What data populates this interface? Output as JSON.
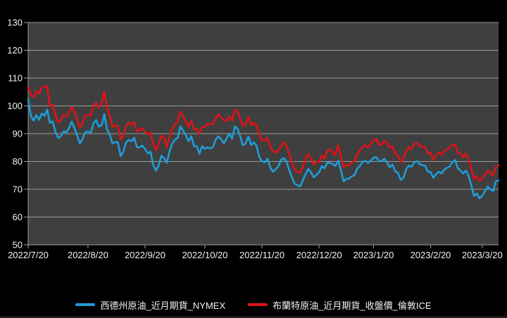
{
  "colors": {
    "background": "#000000",
    "plot_background": "#3F3F3F",
    "gridline": "#9B9B9B",
    "axis_text": "#F2F2F2",
    "wti_line": "#1E9DD8",
    "brent_line": "#E01217",
    "bottom_edge": "#1D1D1D"
  },
  "chart_data": {
    "type": "line",
    "title": "",
    "grid": "horizontal",
    "legend_position": "bottom",
    "ylim": [
      50,
      130
    ],
    "y_ticks": [
      130,
      120,
      110,
      100,
      90,
      80,
      70,
      60,
      50
    ],
    "x_tick_labels": [
      "2022/7/20",
      "2022/8/20",
      "2022/9/20",
      "2022/10/20",
      "2022/11/20",
      "2022/12/20",
      "2023/1/20",
      "2023/2/20",
      "2023/3/20"
    ],
    "x_tick_indices": [
      0,
      22,
      43,
      65,
      86,
      107,
      127,
      148,
      167
    ],
    "series": [
      {
        "name": "西德州原油_近月期貨_NYMEX",
        "color": "#1E9DD8",
        "values": [
          102.3,
          96.4,
          94.7,
          96.7,
          95.0,
          97.3,
          96.4,
          98.6,
          93.9,
          94.4,
          90.7,
          88.5,
          89.0,
          90.8,
          90.5,
          91.9,
          94.3,
          92.1,
          89.4,
          86.5,
          88.1,
          90.5,
          90.8,
          90.2,
          93.7,
          94.9,
          92.5,
          93.1,
          97.0,
          91.6,
          89.6,
          86.6,
          86.9,
          86.9,
          81.9,
          83.5,
          86.8,
          87.8,
          87.3,
          88.5,
          85.1,
          85.1,
          85.7,
          84.5,
          82.9,
          83.5,
          78.7,
          76.7,
          78.5,
          82.1,
          81.2,
          79.5,
          83.6,
          86.5,
          87.8,
          88.5,
          92.6,
          91.1,
          89.4,
          87.3,
          89.1,
          85.6,
          85.5,
          82.8,
          85.5,
          84.5,
          85.1,
          84.6,
          85.3,
          87.9,
          89.1,
          87.9,
          86.5,
          88.4,
          90.0,
          88.2,
          92.6,
          91.8,
          88.9,
          85.8,
          86.5,
          89.0,
          85.9,
          86.9,
          85.6,
          81.6,
          80.1,
          79.7,
          81.0,
          77.9,
          76.3,
          77.2,
          78.2,
          80.6,
          81.2,
          80.0,
          76.9,
          74.3,
          72.0,
          71.5,
          71.0,
          73.2,
          75.4,
          77.3,
          76.1,
          74.3,
          75.2,
          76.1,
          78.3,
          77.5,
          79.6,
          79.5,
          79.0,
          78.4,
          80.3,
          76.9,
          72.8,
          73.7,
          73.8,
          74.6,
          75.1,
          77.4,
          78.4,
          79.9,
          80.2,
          79.5,
          80.3,
          81.3,
          81.6,
          80.1,
          80.2,
          81.0,
          79.7,
          77.9,
          78.9,
          76.4,
          75.9,
          73.4,
          74.1,
          77.1,
          78.5,
          78.1,
          79.7,
          80.1,
          79.1,
          78.6,
          78.5,
          76.3,
          76.2,
          74.1,
          75.4,
          76.3,
          75.7,
          77.1,
          77.7,
          78.2,
          79.7,
          80.5,
          77.6,
          76.7,
          75.7,
          76.7,
          74.8,
          71.3,
          67.6,
          68.4,
          66.7,
          67.6,
          69.3,
          70.9,
          70.0,
          69.3,
          72.8,
          73.2
        ]
      },
      {
        "name": "布蘭特原油_近月期貨_收盤價_倫敦ICE",
        "color": "#E01217",
        "values": [
          106.9,
          103.9,
          103.2,
          105.2,
          104.4,
          106.6,
          107.1,
          107.0,
          100.0,
          100.5,
          96.8,
          94.1,
          94.9,
          96.7,
          96.3,
          97.4,
          99.6,
          98.2,
          95.1,
          92.3,
          93.7,
          96.6,
          96.7,
          96.5,
          100.2,
          101.2,
          99.3,
          101.0,
          105.1,
          99.3,
          96.5,
          92.4,
          93.0,
          92.8,
          88.0,
          89.2,
          92.8,
          94.0,
          93.2,
          94.1,
          90.8,
          91.4,
          92.0,
          90.6,
          89.8,
          90.5,
          86.2,
          84.1,
          86.3,
          89.3,
          88.5,
          85.1,
          88.9,
          91.8,
          93.4,
          94.4,
          97.9,
          96.2,
          94.3,
          92.5,
          94.6,
          91.6,
          91.6,
          90.0,
          92.4,
          92.4,
          93.5,
          93.3,
          93.5,
          95.7,
          96.9,
          95.8,
          94.8,
          94.7,
          96.2,
          94.7,
          98.6,
          97.9,
          95.4,
          92.7,
          93.7,
          96.0,
          93.1,
          93.9,
          92.9,
          89.8,
          87.6,
          87.5,
          88.4,
          85.4,
          83.6,
          83.2,
          84.0,
          85.4,
          86.9,
          85.6,
          82.7,
          79.4,
          77.2,
          76.2,
          76.1,
          78.0,
          80.7,
          82.7,
          81.2,
          79.0,
          79.8,
          80.0,
          82.2,
          81.0,
          83.9,
          84.3,
          83.3,
          82.3,
          85.9,
          82.1,
          77.8,
          78.7,
          78.6,
          79.7,
          80.1,
          82.7,
          84.0,
          85.3,
          85.9,
          85.0,
          86.2,
          87.6,
          88.2,
          86.1,
          86.1,
          87.5,
          86.7,
          84.9,
          85.5,
          82.8,
          82.2,
          79.9,
          81.0,
          83.7,
          85.1,
          84.5,
          86.4,
          86.6,
          85.6,
          85.4,
          85.1,
          83.0,
          83.1,
          80.6,
          82.2,
          83.2,
          82.5,
          83.9,
          84.3,
          84.8,
          85.8,
          86.2,
          83.3,
          82.7,
          81.6,
          82.8,
          80.8,
          77.5,
          73.7,
          74.7,
          73.0,
          73.8,
          75.3,
          76.7,
          75.9,
          75.0,
          78.1,
          78.6
        ]
      }
    ]
  },
  "legend": {
    "items": [
      {
        "label": "西德州原油_近月期貨_NYMEX",
        "color": "#1E9DD8"
      },
      {
        "label": "布蘭特原油_近月期貨_收盤價_倫敦ICE",
        "color": "#E01217"
      }
    ]
  }
}
